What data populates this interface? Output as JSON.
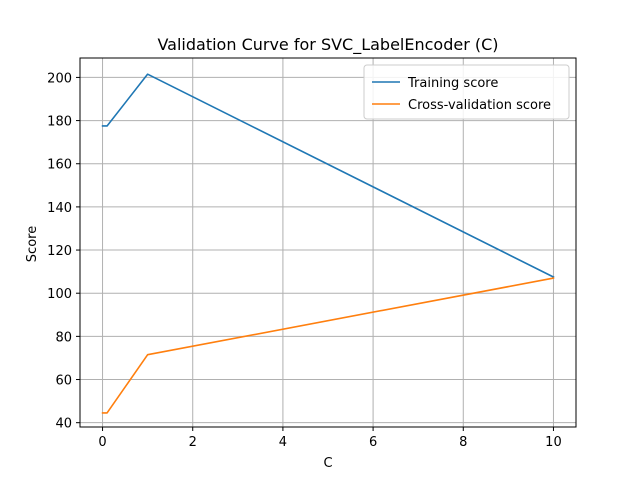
{
  "chart_data": {
    "type": "line",
    "title": "Validation Curve for SVC_LabelEncoder (C)",
    "xlabel": "C",
    "ylabel": "Score",
    "xlim": [
      -0.5,
      10.5
    ],
    "ylim": [
      38,
      209
    ],
    "xticks": [
      0,
      2,
      4,
      6,
      8,
      10
    ],
    "yticks": [
      40,
      60,
      80,
      100,
      120,
      140,
      160,
      180,
      200
    ],
    "grid": true,
    "legend_position": "top-right",
    "x": [
      0.001,
      0.01,
      0.1,
      1,
      10
    ],
    "series": [
      {
        "name": "Training score",
        "color": "#1f77b4",
        "values": [
          177.5,
          177.5,
          177.5,
          201.5,
          107.5
        ]
      },
      {
        "name": "Cross-validation score",
        "color": "#ff7f0e",
        "values": [
          44.5,
          44.5,
          44.5,
          71.5,
          107.0
        ]
      }
    ]
  }
}
